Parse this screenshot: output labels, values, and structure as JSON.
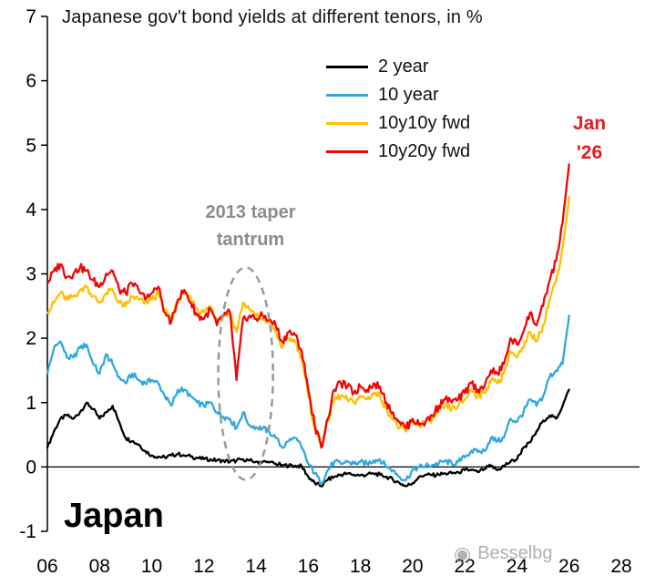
{
  "chart_data": {
    "type": "line",
    "title": "Japanese gov't bond yields at different tenors, in %",
    "xlabel": "",
    "ylabel": "%",
    "x_range": [
      2006,
      2028
    ],
    "y_range": [
      -1,
      7
    ],
    "grid": false,
    "legend_position": "top-center",
    "x_ticks": [
      "06",
      "08",
      "10",
      "12",
      "14",
      "16",
      "18",
      "20",
      "22",
      "24",
      "26",
      "28"
    ],
    "y_ticks": [
      "7",
      "6",
      "5",
      "4",
      "3",
      "2",
      "1",
      "0",
      "-1"
    ],
    "x": [
      2006,
      2006.25,
      2006.5,
      2006.75,
      2007,
      2007.25,
      2007.5,
      2007.75,
      2008,
      2008.25,
      2008.5,
      2008.75,
      2009,
      2009.25,
      2009.5,
      2009.75,
      2010,
      2010.25,
      2010.5,
      2010.75,
      2011,
      2011.25,
      2011.5,
      2011.75,
      2012,
      2012.25,
      2012.5,
      2012.75,
      2013,
      2013.25,
      2013.5,
      2013.75,
      2014,
      2014.25,
      2014.5,
      2014.75,
      2015,
      2015.25,
      2015.5,
      2015.75,
      2016,
      2016.25,
      2016.5,
      2016.75,
      2017,
      2017.25,
      2017.5,
      2017.75,
      2018,
      2018.25,
      2018.5,
      2018.75,
      2019,
      2019.25,
      2019.5,
      2019.75,
      2020,
      2020.25,
      2020.5,
      2020.75,
      2021,
      2021.25,
      2021.5,
      2021.75,
      2022,
      2022.25,
      2022.5,
      2022.75,
      2023,
      2023.25,
      2023.5,
      2023.75,
      2024,
      2024.25,
      2024.5,
      2024.75,
      2025,
      2025.25,
      2025.5,
      2025.75,
      2026
    ],
    "series": [
      {
        "name": "2 year",
        "color": "#000000",
        "values": [
          0.3,
          0.55,
          0.75,
          0.8,
          0.75,
          0.85,
          1.0,
          0.9,
          0.75,
          0.85,
          0.95,
          0.7,
          0.45,
          0.4,
          0.35,
          0.25,
          0.18,
          0.16,
          0.15,
          0.18,
          0.2,
          0.18,
          0.16,
          0.14,
          0.12,
          0.12,
          0.1,
          0.1,
          0.08,
          0.1,
          0.12,
          0.1,
          0.08,
          0.08,
          0.07,
          0.05,
          0.03,
          0.02,
          0.02,
          0.01,
          -0.15,
          -0.25,
          -0.3,
          -0.2,
          -0.15,
          -0.12,
          -0.1,
          -0.12,
          -0.13,
          -0.12,
          -0.1,
          -0.12,
          -0.15,
          -0.2,
          -0.25,
          -0.3,
          -0.25,
          -0.15,
          -0.12,
          -0.13,
          -0.12,
          -0.1,
          -0.1,
          -0.08,
          -0.05,
          -0.05,
          -0.08,
          -0.03,
          0.02,
          -0.05,
          0.02,
          0.08,
          0.12,
          0.3,
          0.38,
          0.55,
          0.72,
          0.8,
          0.75,
          0.95,
          1.2
        ]
      },
      {
        "name": "10 year",
        "color": "#2FA8E0",
        "values": [
          1.45,
          1.85,
          1.95,
          1.7,
          1.7,
          1.85,
          1.9,
          1.6,
          1.45,
          1.75,
          1.6,
          1.4,
          1.3,
          1.45,
          1.35,
          1.3,
          1.35,
          1.3,
          1.1,
          0.95,
          1.2,
          1.2,
          1.1,
          1.0,
          0.95,
          1.0,
          0.85,
          0.78,
          0.75,
          0.6,
          0.85,
          0.65,
          0.62,
          0.6,
          0.55,
          0.45,
          0.3,
          0.4,
          0.45,
          0.3,
          0.05,
          -0.1,
          -0.25,
          -0.05,
          0.08,
          0.05,
          0.08,
          0.05,
          0.08,
          0.05,
          0.1,
          0.12,
          0.0,
          -0.05,
          -0.15,
          -0.2,
          -0.05,
          0.0,
          0.02,
          0.03,
          0.05,
          0.1,
          0.05,
          0.08,
          0.15,
          0.25,
          0.23,
          0.25,
          0.45,
          0.4,
          0.45,
          0.75,
          0.7,
          0.85,
          1.05,
          0.95,
          1.1,
          1.4,
          1.5,
          1.6,
          2.35
        ]
      },
      {
        "name": "10y10y fwd",
        "color": "#FFC000",
        "values": [
          2.4,
          2.55,
          2.7,
          2.6,
          2.65,
          2.75,
          2.8,
          2.65,
          2.55,
          2.7,
          2.75,
          2.55,
          2.5,
          2.65,
          2.6,
          2.55,
          2.6,
          2.7,
          2.45,
          2.3,
          2.55,
          2.7,
          2.6,
          2.45,
          2.4,
          2.5,
          2.3,
          2.35,
          2.4,
          2.1,
          2.55,
          2.45,
          2.35,
          2.3,
          2.25,
          2.1,
          1.85,
          2.0,
          1.95,
          1.7,
          1.1,
          0.6,
          0.35,
          0.7,
          1.05,
          1.1,
          1.05,
          1.0,
          1.1,
          1.05,
          1.15,
          1.1,
          0.9,
          0.75,
          0.6,
          0.55,
          0.7,
          0.65,
          0.7,
          0.75,
          0.85,
          0.95,
          0.9,
          0.95,
          1.05,
          1.2,
          1.1,
          1.15,
          1.35,
          1.3,
          1.45,
          1.8,
          1.7,
          1.85,
          2.1,
          1.95,
          2.2,
          2.6,
          2.9,
          3.4,
          4.2
        ]
      },
      {
        "name": "10y20y fwd",
        "color": "#F20505",
        "values": [
          2.85,
          3.05,
          3.15,
          2.95,
          3.0,
          3.1,
          3.05,
          2.9,
          2.8,
          3.0,
          3.05,
          2.75,
          2.7,
          2.85,
          2.75,
          2.6,
          2.7,
          2.8,
          2.4,
          2.25,
          2.6,
          2.75,
          2.55,
          2.35,
          2.3,
          2.45,
          2.2,
          2.35,
          2.4,
          1.35,
          2.3,
          2.35,
          2.3,
          2.35,
          2.3,
          2.2,
          1.95,
          2.1,
          2.05,
          1.8,
          1.2,
          0.65,
          0.3,
          0.75,
          1.2,
          1.3,
          1.25,
          1.15,
          1.25,
          1.2,
          1.3,
          1.25,
          1.0,
          0.85,
          0.7,
          0.6,
          0.75,
          0.65,
          0.7,
          0.8,
          0.95,
          1.05,
          1.0,
          1.05,
          1.15,
          1.3,
          1.2,
          1.25,
          1.5,
          1.45,
          1.6,
          2.0,
          1.9,
          2.1,
          2.4,
          2.2,
          2.5,
          2.9,
          3.2,
          3.8,
          4.7
        ]
      }
    ],
    "annotation": {
      "line1": "2013 taper",
      "line2": "tantrum",
      "color": "#8c8c8c",
      "ellipse": {
        "cx_year": 2013.6,
        "cy_value": 1.45,
        "rx_years": 1.05,
        "ry_values": 1.65
      }
    },
    "end_label": {
      "line1": "Jan",
      "line2": "'26",
      "color": "#E8191C"
    },
    "country_label": "Japan",
    "watermark": "Besselbg"
  }
}
